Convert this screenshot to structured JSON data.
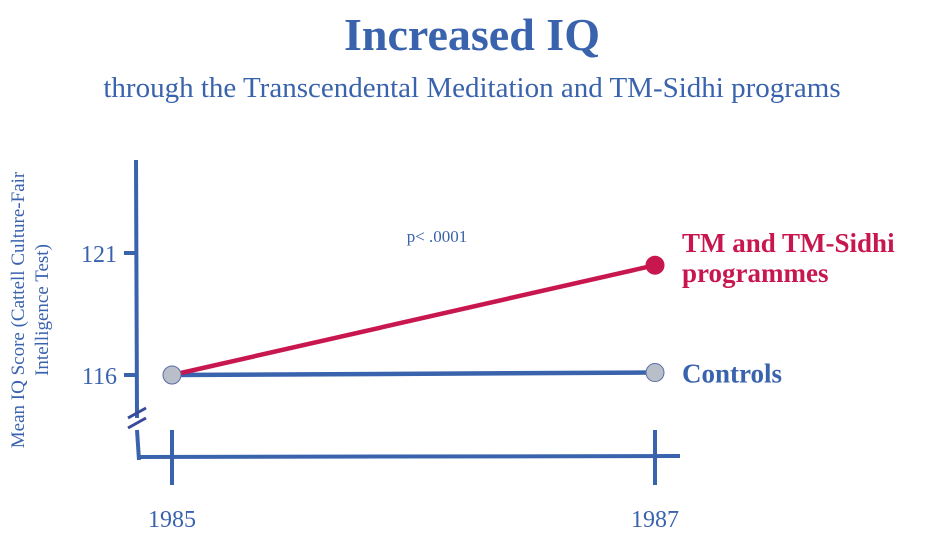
{
  "chart_data": {
    "type": "line",
    "title": "Increased IQ",
    "subtitle": "through the Transcendental Meditation and TM-Sidhi programs",
    "ylabel": "Mean IQ Score (Cattell Culture-Fair Intelligence Test)",
    "ylabel_lines": [
      "Mean IQ Score (Cattell Culture-Fair",
      "Intelligence Test)"
    ],
    "xlabel": "",
    "x": [
      "1985",
      "1987"
    ],
    "y_ticks": [
      116,
      121
    ],
    "ylim": [
      112.5,
      125
    ],
    "axis_break": true,
    "grid": false,
    "annotation": "p< .0001",
    "series": [
      {
        "name": "TM and TM-Sidhi programmes",
        "label_lines": [
          "TM and TM-Sidhi",
          "programmes"
        ],
        "values": [
          116,
          120.5
        ],
        "color": "#c8174f",
        "end_marker_color": "#c8174f"
      },
      {
        "name": "Controls",
        "label_lines": [
          "Controls"
        ],
        "values": [
          116,
          116.1
        ],
        "color": "#3a63ad",
        "end_marker_color": "#b8bfc8"
      }
    ],
    "colors": {
      "axis": "#3a63ad",
      "marker": "#b8bfc8"
    }
  }
}
